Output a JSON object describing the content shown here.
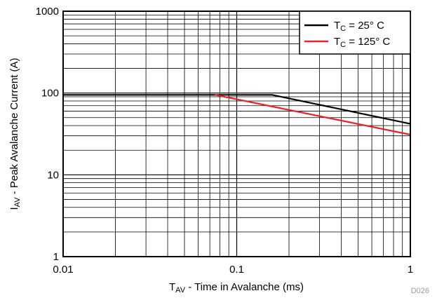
{
  "chart_data": {
    "type": "line",
    "x_scale": "log",
    "y_scale": "log",
    "xlim": [
      0.01,
      1
    ],
    "ylim": [
      1,
      1000
    ],
    "grid": true,
    "legend_position": "top-right",
    "x_ticks": [
      "0.01",
      "0.1",
      "1"
    ],
    "y_ticks": [
      "1",
      "10",
      "100",
      "1000"
    ],
    "xlabel": {
      "main": "T",
      "sub": "AV",
      "rest": " - Time in Avalanche (ms)"
    },
    "ylabel": {
      "main": "I",
      "sub": "AV",
      "rest": " - Peak Avalanche Current (A)"
    },
    "series": [
      {
        "name": {
          "main": "T",
          "sub": "C",
          "rest": " = 25° C"
        },
        "color": "#000000",
        "x": [
          0.01,
          0.16,
          1
        ],
        "y": [
          95,
          95,
          42
        ]
      },
      {
        "name": {
          "main": "T",
          "sub": "C",
          "rest": " = 125° C"
        },
        "color": "#e8202a",
        "x": [
          0.075,
          1
        ],
        "y": [
          95,
          31
        ]
      }
    ],
    "figure_code": "D026"
  }
}
